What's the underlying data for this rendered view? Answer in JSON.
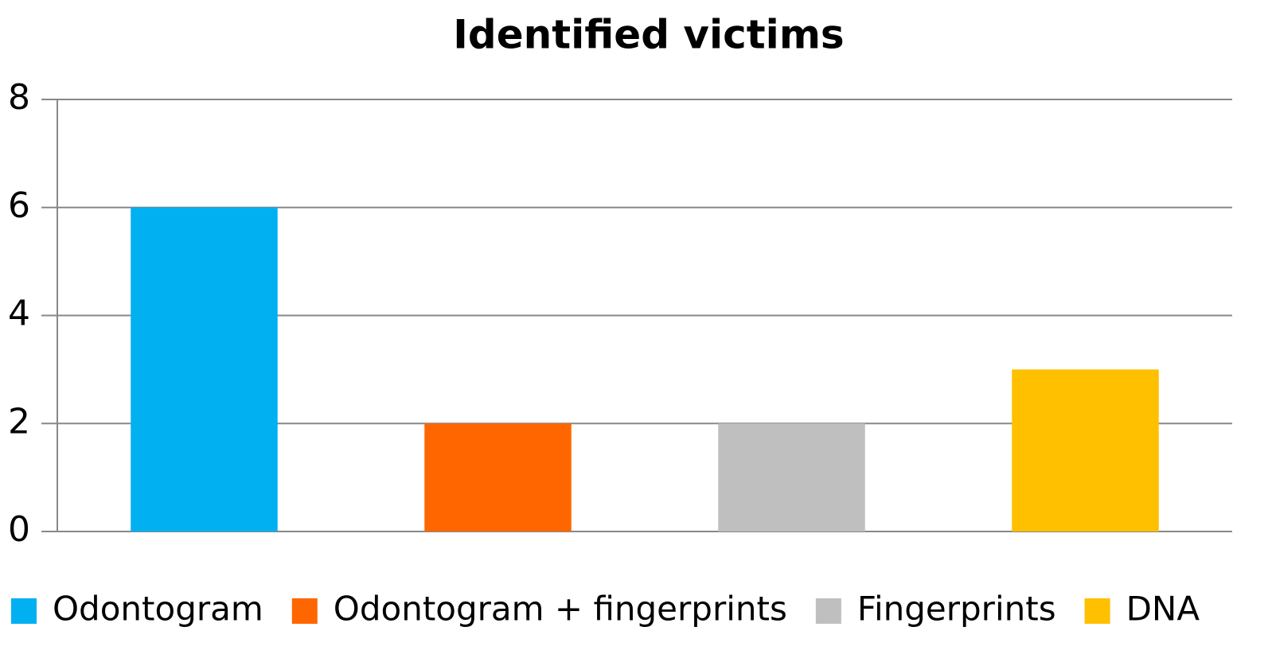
{
  "chart_data": {
    "type": "bar",
    "title": "Identified victims",
    "categories": [
      "Odontogram",
      "Odontogram + fingerprints",
      "Fingerprints",
      "DNA"
    ],
    "values": [
      6,
      2,
      2,
      3
    ],
    "colors": [
      "#00b0f0",
      "#ff6600",
      "#bfbfbf",
      "#ffc000"
    ],
    "ylim": [
      0,
      8
    ],
    "yticks": [
      0,
      2,
      4,
      6,
      8
    ],
    "grid": true,
    "legend": "bottom"
  }
}
